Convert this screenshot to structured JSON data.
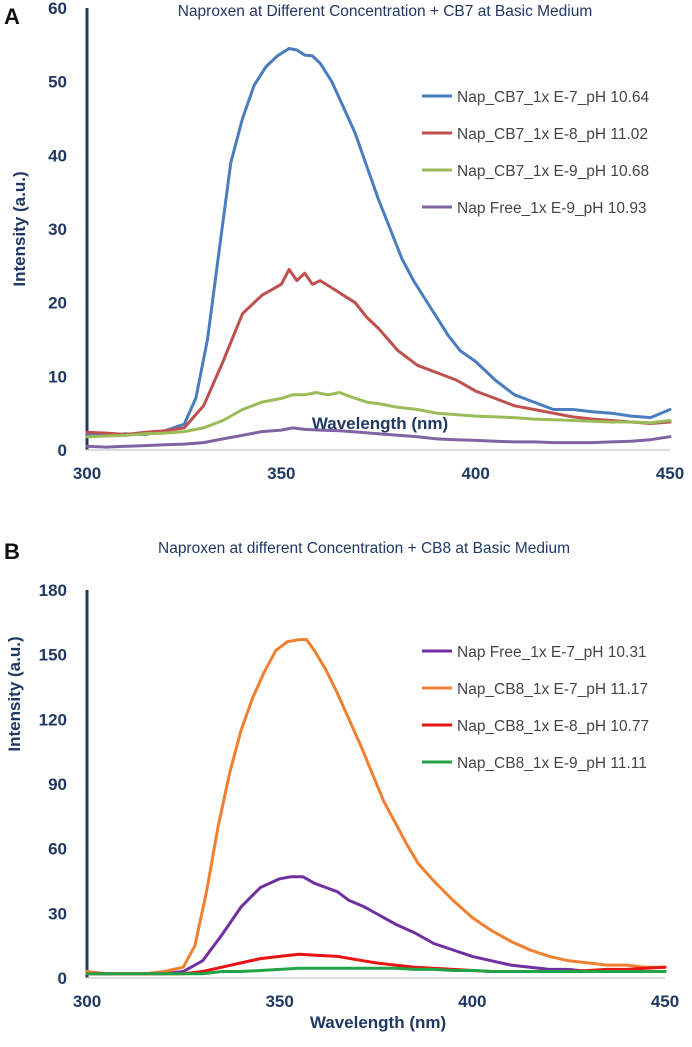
{
  "chart_data": [
    {
      "panel": "A",
      "type": "line",
      "title": "Naproxen at Different Concentration + CB7 at Basic Medium",
      "xlabel": "Wavelength (nm)",
      "ylabel": "Intensity (a.u.)",
      "xlim": [
        300,
        450
      ],
      "ylim": [
        0,
        60
      ],
      "xticks": [
        300,
        350,
        400,
        450
      ],
      "yticks": [
        0,
        10,
        20,
        30,
        40,
        50,
        60
      ],
      "grid": false,
      "legend_position": "right",
      "series": [
        {
          "name": "Nap_CB7_1x E-7_pH 10.64",
          "color": "#4a7cbf",
          "x": [
            300,
            305,
            310,
            315,
            320,
            325,
            328,
            331,
            334,
            337,
            340,
            343,
            346,
            349,
            352,
            354,
            356,
            358,
            360,
            363,
            366,
            369,
            372,
            375,
            378,
            381,
            384,
            387,
            390,
            393,
            396,
            400,
            405,
            410,
            415,
            420,
            425,
            430,
            435,
            440,
            445,
            450
          ],
          "values": [
            2.2,
            2.0,
            2.2,
            2.1,
            2.6,
            3.5,
            7.0,
            15.0,
            27.0,
            39.0,
            45.0,
            49.5,
            52.0,
            53.5,
            54.5,
            54.3,
            53.6,
            53.5,
            52.5,
            50.0,
            46.5,
            43.0,
            38.5,
            34.0,
            30.0,
            26.0,
            23.0,
            20.5,
            18.0,
            15.5,
            13.5,
            12.0,
            9.5,
            7.5,
            6.5,
            5.5,
            5.5,
            5.2,
            5.0,
            4.6,
            4.4,
            5.5
          ]
        },
        {
          "name": "Nap_CB7_1x E-8_pH 11.02",
          "color": "#c0504d",
          "x": [
            300,
            305,
            310,
            315,
            320,
            325,
            330,
            335,
            340,
            345,
            350,
            352,
            354,
            356,
            358,
            360,
            363,
            366,
            369,
            372,
            375,
            380,
            385,
            390,
            395,
            400,
            405,
            410,
            415,
            420,
            425,
            430,
            435,
            440,
            445,
            450
          ],
          "values": [
            2.4,
            2.3,
            2.1,
            2.4,
            2.6,
            3.0,
            6.0,
            12.0,
            18.5,
            21.0,
            22.5,
            24.5,
            23.0,
            24.0,
            22.5,
            23.0,
            22.0,
            21.0,
            20.0,
            18.0,
            16.5,
            13.5,
            11.5,
            10.5,
            9.5,
            8.0,
            7.0,
            6.0,
            5.5,
            5.0,
            4.5,
            4.2,
            4.0,
            3.8,
            3.6,
            3.8
          ]
        },
        {
          "name": "Nap_CB7_1x E-9_pH 10.68",
          "color": "#9bbb59",
          "x": [
            300,
            305,
            310,
            315,
            320,
            325,
            330,
            335,
            340,
            345,
            350,
            353,
            356,
            359,
            362,
            365,
            368,
            372,
            375,
            380,
            385,
            390,
            395,
            400,
            405,
            410,
            415,
            420,
            425,
            430,
            435,
            440,
            445,
            450
          ],
          "values": [
            1.8,
            1.9,
            2.0,
            2.2,
            2.3,
            2.5,
            3.0,
            4.0,
            5.5,
            6.5,
            7.0,
            7.5,
            7.5,
            7.8,
            7.5,
            7.8,
            7.2,
            6.5,
            6.3,
            5.8,
            5.5,
            5.0,
            4.8,
            4.6,
            4.5,
            4.4,
            4.2,
            4.1,
            4.0,
            3.9,
            3.8,
            3.8,
            3.7,
            4.0
          ]
        },
        {
          "name": "Nap Free_1x E-9_pH 10.93",
          "color": "#8064a2",
          "x": [
            300,
            305,
            310,
            315,
            320,
            325,
            330,
            335,
            340,
            345,
            350,
            353,
            356,
            360,
            365,
            370,
            375,
            380,
            385,
            390,
            395,
            400,
            405,
            410,
            415,
            420,
            425,
            430,
            435,
            440,
            445,
            450
          ],
          "values": [
            0.5,
            0.4,
            0.5,
            0.6,
            0.7,
            0.8,
            1.0,
            1.5,
            2.0,
            2.5,
            2.7,
            3.0,
            2.8,
            2.7,
            2.6,
            2.4,
            2.2,
            2.0,
            1.8,
            1.5,
            1.4,
            1.3,
            1.2,
            1.1,
            1.1,
            1.0,
            1.0,
            1.0,
            1.1,
            1.2,
            1.4,
            1.8
          ]
        }
      ]
    },
    {
      "panel": "B",
      "type": "line",
      "title": "Naproxen at different Concentration + CB8 at Basic Medium",
      "xlabel": "Wavelength (nm)",
      "ylabel": "Intensity (a.u.)",
      "xlim": [
        300,
        450
      ],
      "ylim": [
        0,
        180
      ],
      "xticks": [
        300,
        350,
        400,
        450
      ],
      "yticks": [
        0,
        30,
        60,
        90,
        120,
        150,
        180
      ],
      "grid": false,
      "legend_position": "right",
      "series": [
        {
          "name": "Nap Free_1x E-7_pH 10.31",
          "color": "#7030a0",
          "x": [
            300,
            305,
            310,
            315,
            320,
            325,
            330,
            335,
            340,
            345,
            350,
            353,
            356,
            359,
            362,
            365,
            368,
            372,
            376,
            380,
            385,
            390,
            395,
            400,
            405,
            410,
            415,
            420,
            425,
            430,
            435,
            440,
            445,
            450
          ],
          "values": [
            2,
            2,
            2,
            2,
            2,
            3,
            8,
            20,
            33,
            42,
            46,
            47,
            47,
            44,
            42,
            40,
            36,
            33,
            29,
            25,
            21,
            16,
            13,
            10,
            8,
            6,
            5,
            4,
            4,
            3,
            3,
            3,
            3,
            3
          ]
        },
        {
          "name": "Nap_CB8_1x E-7_pH 11.17",
          "color": "#f08030",
          "x": [
            300,
            305,
            310,
            315,
            320,
            325,
            328,
            331,
            334,
            337,
            340,
            343,
            346,
            349,
            352,
            355,
            357,
            359,
            362,
            365,
            368,
            371,
            374,
            377,
            380,
            383,
            386,
            390,
            395,
            400,
            405,
            410,
            415,
            420,
            425,
            430,
            435,
            440,
            445,
            450
          ],
          "values": [
            3,
            2,
            2,
            2,
            3,
            5,
            15,
            40,
            70,
            95,
            115,
            130,
            142,
            152,
            156,
            157,
            157,
            152,
            143,
            132,
            120,
            108,
            95,
            82,
            72,
            62,
            53,
            45,
            36,
            28,
            22,
            17,
            13,
            10,
            8,
            7,
            6,
            6,
            5,
            5
          ]
        },
        {
          "name": "Nap_CB8_1x E-8_pH 10.77",
          "color": "#e81414",
          "x": [
            300,
            305,
            310,
            315,
            320,
            325,
            330,
            335,
            340,
            345,
            350,
            355,
            360,
            365,
            370,
            375,
            380,
            385,
            390,
            395,
            400,
            405,
            410,
            415,
            420,
            425,
            430,
            435,
            440,
            445,
            450
          ],
          "values": [
            2,
            2,
            2,
            2,
            2,
            2,
            3,
            5,
            7,
            9,
            10,
            11,
            10.5,
            10,
            8.5,
            7,
            6,
            5,
            4.5,
            4,
            3.5,
            3,
            3,
            3,
            3,
            3,
            3.5,
            4,
            4,
            4.5,
            5
          ]
        },
        {
          "name": "Nap_CB8_1x E-9_pH 11.11",
          "color": "#21a347",
          "x": [
            300,
            305,
            310,
            315,
            320,
            325,
            330,
            335,
            340,
            345,
            350,
            355,
            360,
            365,
            370,
            375,
            380,
            385,
            390,
            395,
            400,
            405,
            410,
            415,
            420,
            425,
            430,
            435,
            440,
            445,
            450
          ],
          "values": [
            2,
            2,
            2,
            2,
            2,
            2,
            2,
            3,
            3,
            3.5,
            4,
            4.5,
            4.5,
            4.5,
            4.5,
            4.5,
            4.5,
            4,
            4,
            3.5,
            3.5,
            3,
            3,
            3,
            3,
            3,
            3,
            3,
            3,
            3,
            3
          ]
        }
      ]
    }
  ]
}
